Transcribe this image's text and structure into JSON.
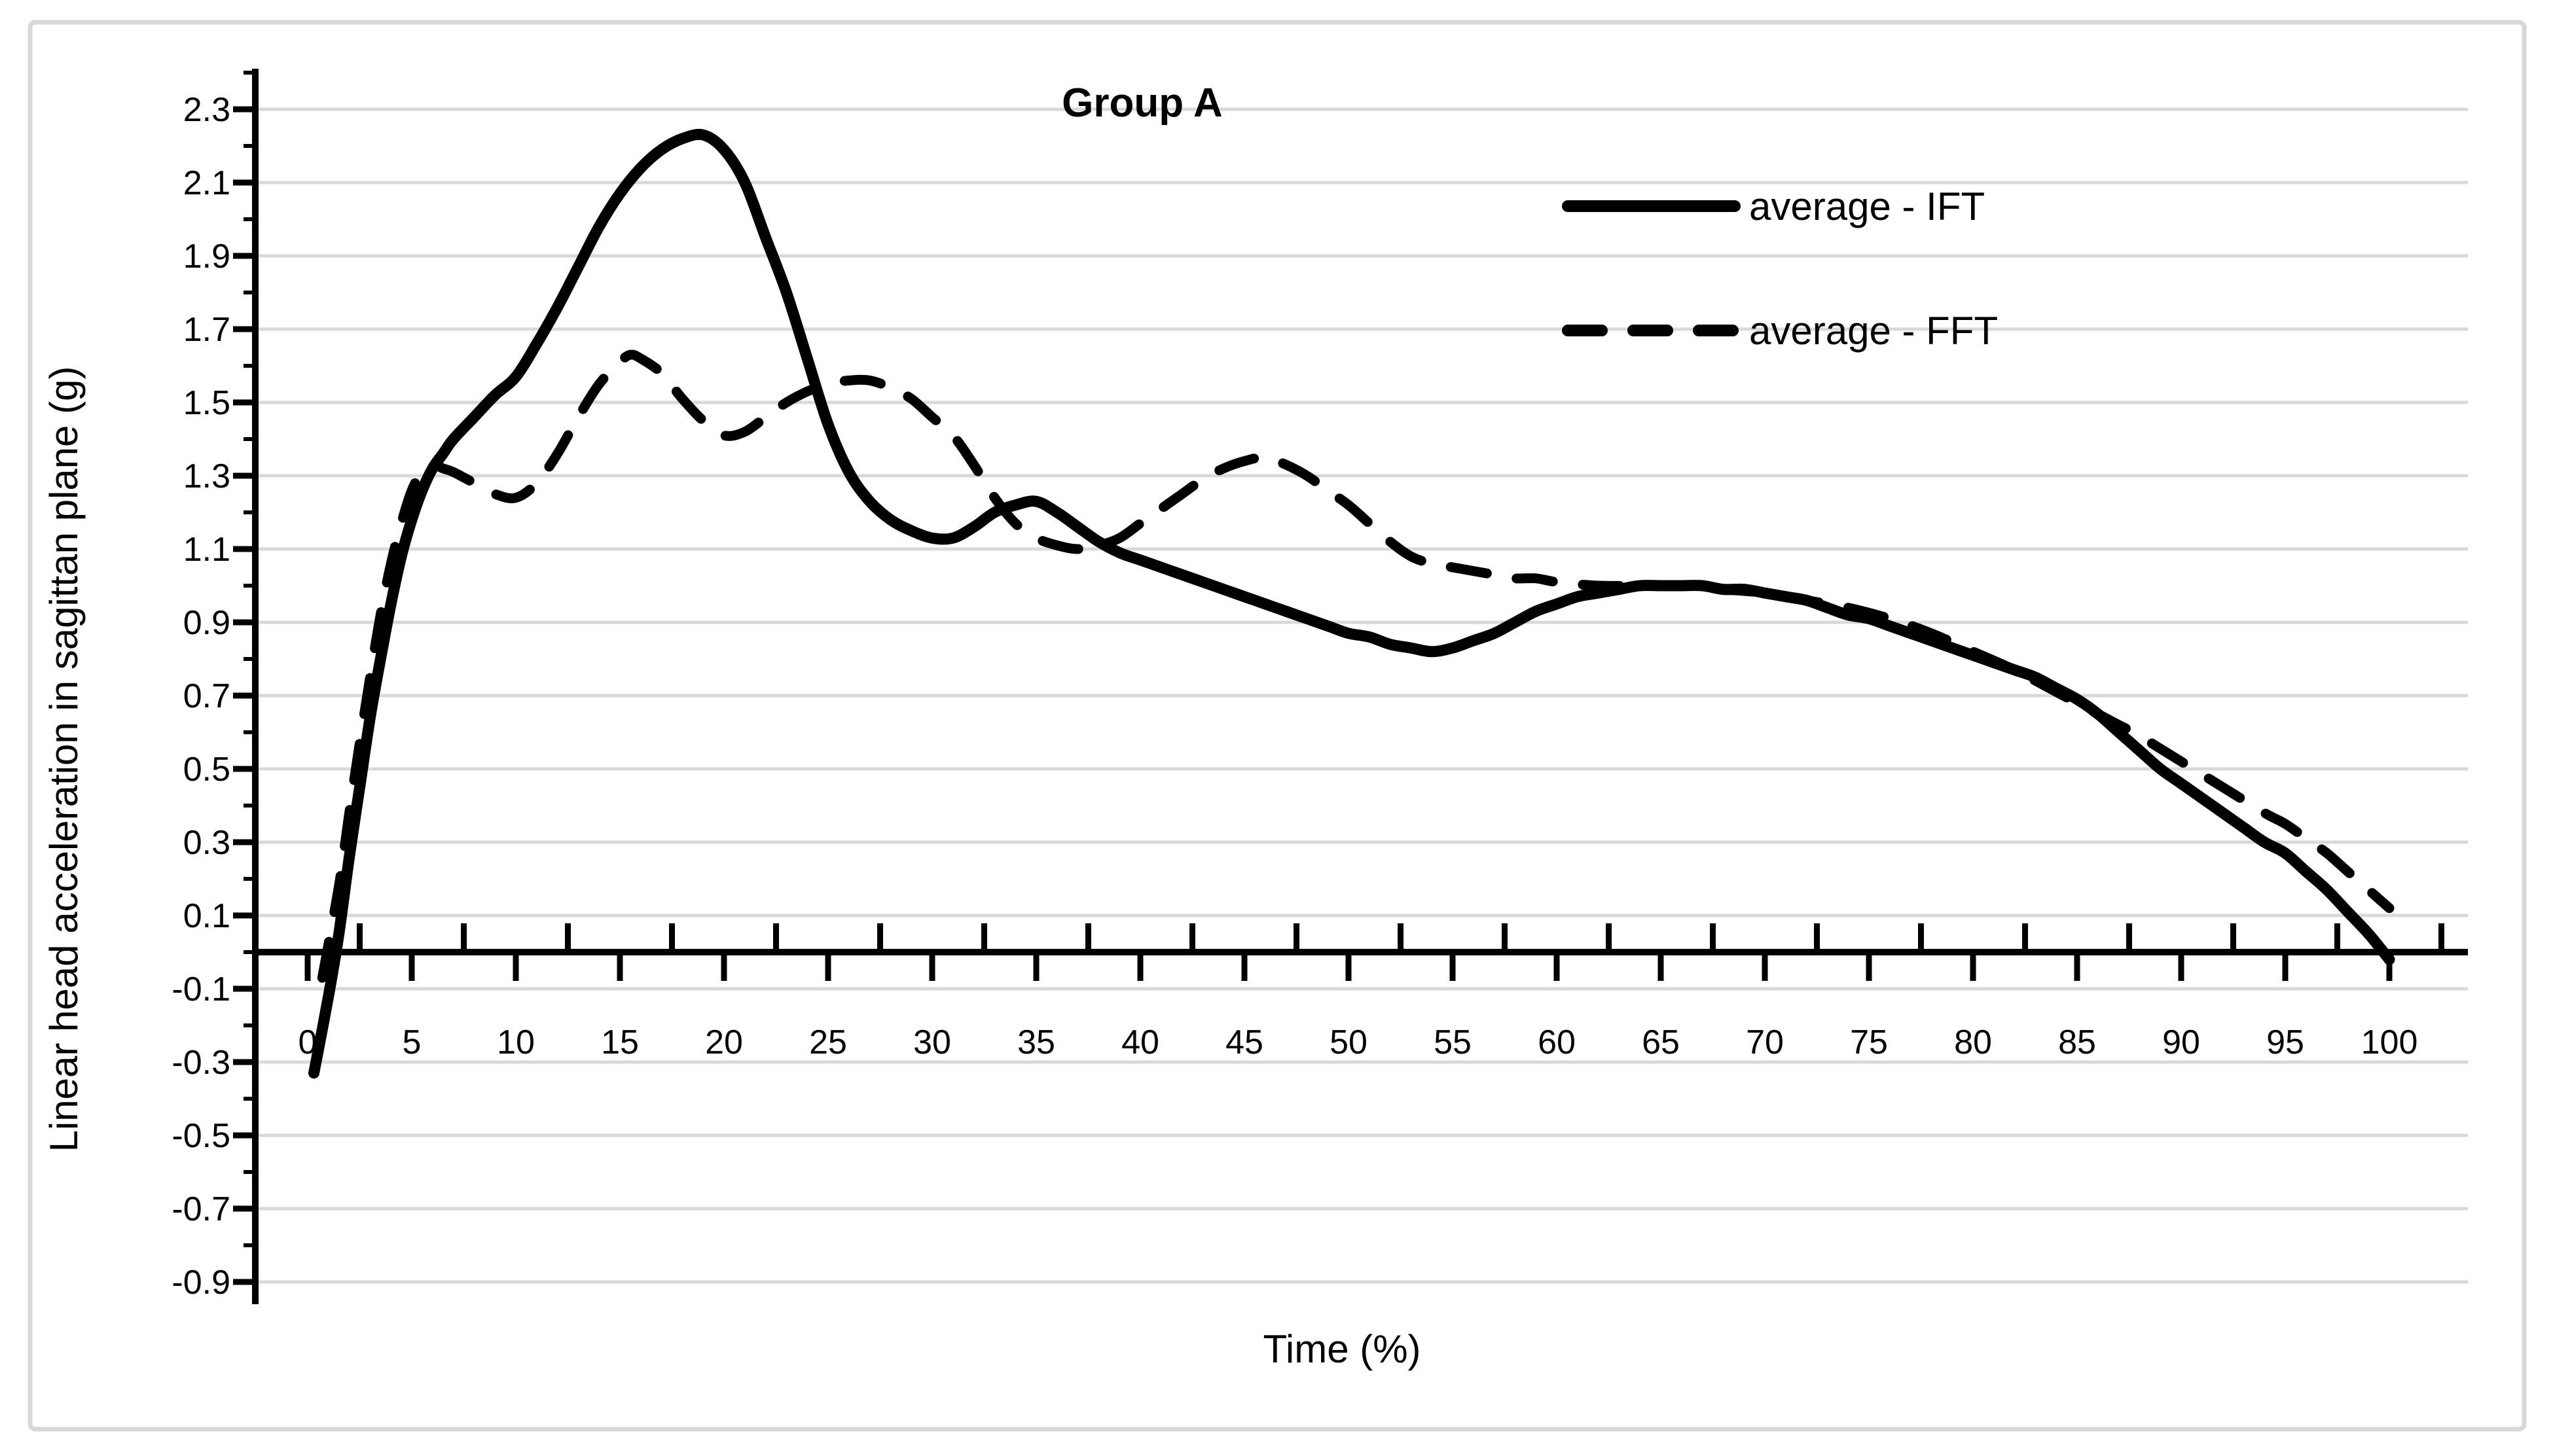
{
  "chart_data": {
    "type": "line",
    "title": "Group A",
    "xlabel": "Time (%)",
    "ylabel": "Linear head acceleration in sagittan plane (g)",
    "xlim": [
      -2.5,
      103.8
    ],
    "ylim": [
      -0.95,
      2.42
    ],
    "x_ticks": [
      0,
      5,
      10,
      15,
      20,
      25,
      30,
      35,
      40,
      45,
      50,
      55,
      60,
      65,
      70,
      75,
      80,
      85,
      90,
      95,
      100
    ],
    "y_ticks": [
      2.3,
      2.1,
      1.9,
      1.7,
      1.5,
      1.3,
      1.1,
      0.9,
      0.7,
      0.5,
      0.3,
      0.1,
      -0.1,
      -0.3,
      -0.5,
      -0.7,
      -0.9
    ],
    "grid": "horizontal-on",
    "legend_position": "inside-upper-right",
    "colors": {
      "series": "#000000",
      "gridline": "#d9d9d9",
      "axis": "#000000",
      "background": "#ffffff",
      "border": "#d8d8d8"
    },
    "series": [
      {
        "name": "average - IFT",
        "style": "solid",
        "points": [
          [
            0.3,
            -0.33
          ],
          [
            1,
            -0.12
          ],
          [
            1.5,
            0.05
          ],
          [
            2,
            0.26
          ],
          [
            2.5,
            0.45
          ],
          [
            3,
            0.64
          ],
          [
            3.5,
            0.8
          ],
          [
            4,
            0.95
          ],
          [
            4.5,
            1.08
          ],
          [
            5,
            1.18
          ],
          [
            5.5,
            1.26
          ],
          [
            6,
            1.32
          ],
          [
            6.5,
            1.36
          ],
          [
            7,
            1.4
          ],
          [
            8,
            1.46
          ],
          [
            9,
            1.52
          ],
          [
            10,
            1.57
          ],
          [
            11,
            1.66
          ],
          [
            12,
            1.76
          ],
          [
            13,
            1.87
          ],
          [
            14,
            1.98
          ],
          [
            15,
            2.07
          ],
          [
            16,
            2.14
          ],
          [
            17,
            2.19
          ],
          [
            18,
            2.22
          ],
          [
            19,
            2.23
          ],
          [
            20,
            2.19
          ],
          [
            21,
            2.1
          ],
          [
            22,
            1.95
          ],
          [
            23,
            1.8
          ],
          [
            24,
            1.62
          ],
          [
            25,
            1.44
          ],
          [
            26,
            1.31
          ],
          [
            27,
            1.23
          ],
          [
            28,
            1.18
          ],
          [
            29,
            1.15
          ],
          [
            30,
            1.13
          ],
          [
            31,
            1.13
          ],
          [
            32,
            1.16
          ],
          [
            33,
            1.2
          ],
          [
            34,
            1.22
          ],
          [
            35,
            1.23
          ],
          [
            36,
            1.2
          ],
          [
            37,
            1.16
          ],
          [
            38,
            1.12
          ],
          [
            39,
            1.09
          ],
          [
            40,
            1.07
          ],
          [
            41,
            1.05
          ],
          [
            42,
            1.03
          ],
          [
            43,
            1.01
          ],
          [
            44,
            0.99
          ],
          [
            45,
            0.97
          ],
          [
            46,
            0.95
          ],
          [
            47,
            0.93
          ],
          [
            48,
            0.91
          ],
          [
            49,
            0.89
          ],
          [
            50,
            0.87
          ],
          [
            51,
            0.86
          ],
          [
            52,
            0.84
          ],
          [
            53,
            0.83
          ],
          [
            54,
            0.82
          ],
          [
            55,
            0.83
          ],
          [
            56,
            0.85
          ],
          [
            57,
            0.87
          ],
          [
            58,
            0.9
          ],
          [
            59,
            0.93
          ],
          [
            60,
            0.95
          ],
          [
            61,
            0.97
          ],
          [
            62,
            0.98
          ],
          [
            63,
            0.99
          ],
          [
            64,
            1.0
          ],
          [
            65,
            1.0
          ],
          [
            66,
            1.0
          ],
          [
            67,
            1.0
          ],
          [
            68,
            0.99
          ],
          [
            69,
            0.99
          ],
          [
            70,
            0.98
          ],
          [
            71,
            0.97
          ],
          [
            72,
            0.96
          ],
          [
            73,
            0.94
          ],
          [
            74,
            0.92
          ],
          [
            75,
            0.91
          ],
          [
            76,
            0.89
          ],
          [
            77,
            0.87
          ],
          [
            78,
            0.85
          ],
          [
            79,
            0.83
          ],
          [
            80,
            0.81
          ],
          [
            81,
            0.79
          ],
          [
            82,
            0.77
          ],
          [
            83,
            0.75
          ],
          [
            84,
            0.72
          ],
          [
            85,
            0.69
          ],
          [
            86,
            0.65
          ],
          [
            87,
            0.6
          ],
          [
            88,
            0.55
          ],
          [
            89,
            0.5
          ],
          [
            90,
            0.46
          ],
          [
            91,
            0.42
          ],
          [
            92,
            0.38
          ],
          [
            93,
            0.34
          ],
          [
            94,
            0.3
          ],
          [
            95,
            0.27
          ],
          [
            96,
            0.22
          ],
          [
            97,
            0.17
          ],
          [
            98,
            0.11
          ],
          [
            99,
            0.05
          ],
          [
            100,
            -0.02
          ]
        ]
      },
      {
        "name": "average - FFT",
        "style": "dashed",
        "points": [
          [
            0.7,
            -0.07
          ],
          [
            1.5,
            0.18
          ],
          [
            2,
            0.38
          ],
          [
            2.5,
            0.57
          ],
          [
            3,
            0.75
          ],
          [
            3.5,
            0.92
          ],
          [
            4,
            1.06
          ],
          [
            4.5,
            1.17
          ],
          [
            5,
            1.26
          ],
          [
            5.5,
            1.31
          ],
          [
            6,
            1.33
          ],
          [
            6.5,
            1.32
          ],
          [
            7,
            1.31
          ],
          [
            8,
            1.28
          ],
          [
            9,
            1.25
          ],
          [
            10,
            1.24
          ],
          [
            11,
            1.28
          ],
          [
            12,
            1.36
          ],
          [
            13,
            1.46
          ],
          [
            14,
            1.55
          ],
          [
            15,
            1.61
          ],
          [
            15.5,
            1.63
          ],
          [
            16,
            1.62
          ],
          [
            17,
            1.58
          ],
          [
            18,
            1.51
          ],
          [
            19,
            1.45
          ],
          [
            20,
            1.41
          ],
          [
            21,
            1.42
          ],
          [
            22,
            1.46
          ],
          [
            23,
            1.5
          ],
          [
            24,
            1.53
          ],
          [
            25,
            1.55
          ],
          [
            26,
            1.56
          ],
          [
            27,
            1.56
          ],
          [
            28,
            1.54
          ],
          [
            29,
            1.51
          ],
          [
            30,
            1.46
          ],
          [
            31,
            1.41
          ],
          [
            32,
            1.33
          ],
          [
            33,
            1.24
          ],
          [
            34,
            1.17
          ],
          [
            35,
            1.13
          ],
          [
            36,
            1.11
          ],
          [
            37,
            1.1
          ],
          [
            38,
            1.11
          ],
          [
            39,
            1.13
          ],
          [
            40,
            1.17
          ],
          [
            41,
            1.21
          ],
          [
            42,
            1.25
          ],
          [
            43,
            1.29
          ],
          [
            44,
            1.32
          ],
          [
            45,
            1.34
          ],
          [
            46,
            1.35
          ],
          [
            47,
            1.33
          ],
          [
            48,
            1.3
          ],
          [
            49,
            1.26
          ],
          [
            50,
            1.22
          ],
          [
            51,
            1.17
          ],
          [
            52,
            1.12
          ],
          [
            53,
            1.08
          ],
          [
            54,
            1.06
          ],
          [
            55,
            1.05
          ],
          [
            56,
            1.04
          ],
          [
            57,
            1.03
          ],
          [
            58,
            1.02
          ],
          [
            59,
            1.02
          ],
          [
            60,
            1.01
          ],
          [
            62,
            1.0
          ],
          [
            64,
            1.0
          ],
          [
            66,
            1.0
          ],
          [
            68,
            0.99
          ],
          [
            70,
            0.98
          ],
          [
            72,
            0.96
          ],
          [
            74,
            0.94
          ],
          [
            76,
            0.91
          ],
          [
            78,
            0.87
          ],
          [
            80,
            0.82
          ],
          [
            82,
            0.77
          ],
          [
            84,
            0.71
          ],
          [
            85,
            0.68
          ],
          [
            86,
            0.65
          ],
          [
            87,
            0.62
          ],
          [
            88,
            0.59
          ],
          [
            90,
            0.52
          ],
          [
            92,
            0.45
          ],
          [
            94,
            0.38
          ],
          [
            95,
            0.35
          ],
          [
            96,
            0.31
          ],
          [
            97,
            0.27
          ],
          [
            98,
            0.22
          ],
          [
            99,
            0.17
          ],
          [
            100,
            0.12
          ]
        ]
      }
    ]
  }
}
